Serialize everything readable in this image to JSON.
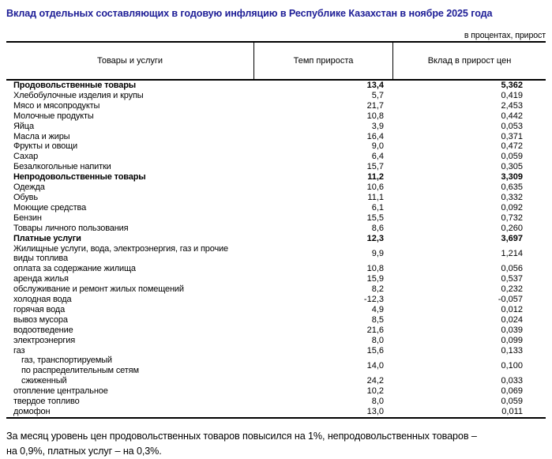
{
  "title": "Вклад отдельных составляющих в годовую инфляцию в Республике Казахстан в ноябре 2025 года",
  "unit_note": "в процентах, прирост",
  "table": {
    "columns": [
      "Товары и услуги",
      "Темп прироста",
      "Вклад в прирост цен"
    ],
    "rows": [
      {
        "label": "Продовольственные товары",
        "rate": "13,4",
        "contribution": "5,362",
        "bold": true,
        "indent": false
      },
      {
        "label": "Хлебобулочные изделия и крупы",
        "rate": "5,7",
        "contribution": "0,419",
        "bold": false,
        "indent": false
      },
      {
        "label": "Мясо и мясопродукты",
        "rate": "21,7",
        "contribution": "2,453",
        "bold": false,
        "indent": false
      },
      {
        "label": "Молочные продукты",
        "rate": "10,8",
        "contribution": "0,442",
        "bold": false,
        "indent": false
      },
      {
        "label": "Яйца",
        "rate": "3,9",
        "contribution": "0,053",
        "bold": false,
        "indent": false
      },
      {
        "label": "Масла и жиры",
        "rate": "16,4",
        "contribution": "0,371",
        "bold": false,
        "indent": false
      },
      {
        "label": "Фрукты и овощи",
        "rate": "9,0",
        "contribution": "0,472",
        "bold": false,
        "indent": false
      },
      {
        "label": "Сахар",
        "rate": "6,4",
        "contribution": "0,059",
        "bold": false,
        "indent": false
      },
      {
        "label": "Безалкогольные напитки",
        "rate": "15,7",
        "contribution": "0,305",
        "bold": false,
        "indent": false
      },
      {
        "label": "Непродовольственные товары",
        "rate": "11,2",
        "contribution": "3,309",
        "bold": true,
        "indent": false
      },
      {
        "label": "Одежда",
        "rate": "10,6",
        "contribution": "0,635",
        "bold": false,
        "indent": false
      },
      {
        "label": "Обувь",
        "rate": "11,1",
        "contribution": "0,332",
        "bold": false,
        "indent": false
      },
      {
        "label": "Моющие средства",
        "rate": "6,1",
        "contribution": "0,092",
        "bold": false,
        "indent": false
      },
      {
        "label": "Бензин",
        "rate": "15,5",
        "contribution": "0,732",
        "bold": false,
        "indent": false
      },
      {
        "label": "Товары личного пользования",
        "rate": "8,6",
        "contribution": "0,260",
        "bold": false,
        "indent": false
      },
      {
        "label": "Платные услуги",
        "rate": "12,3",
        "contribution": "3,697",
        "bold": true,
        "indent": false
      },
      {
        "label": "Жилищные услуги, вода, электроэнергия, газ и прочие\nвиды топлива",
        "rate": "9,9",
        "contribution": "1,214",
        "bold": false,
        "indent": false
      },
      {
        "label": "оплата за содержание жилища",
        "rate": "10,8",
        "contribution": "0,056",
        "bold": false,
        "indent": false
      },
      {
        "label": "аренда жилья",
        "rate": "15,9",
        "contribution": "0,537",
        "bold": false,
        "indent": false
      },
      {
        "label": "обслуживание и ремонт жилых помещений",
        "rate": "8,2",
        "contribution": "0,232",
        "bold": false,
        "indent": false
      },
      {
        "label": "холодная вода",
        "rate": "-12,3",
        "contribution": "-0,057",
        "bold": false,
        "indent": false
      },
      {
        "label": "горячая вода",
        "rate": "4,9",
        "contribution": "0,012",
        "bold": false,
        "indent": false
      },
      {
        "label": "вывоз мусора",
        "rate": "8,5",
        "contribution": "0,024",
        "bold": false,
        "indent": false
      },
      {
        "label": "водоотведение",
        "rate": "21,6",
        "contribution": "0,039",
        "bold": false,
        "indent": false
      },
      {
        "label": "электроэнергия",
        "rate": "8,0",
        "contribution": "0,099",
        "bold": false,
        "indent": false
      },
      {
        "label": "газ",
        "rate": "15,6",
        "contribution": "0,133",
        "bold": false,
        "indent": false
      },
      {
        "label": "газ, транспортируемый\nпо распределительным сетям",
        "rate": "14,0",
        "contribution": "0,100",
        "bold": false,
        "indent": true
      },
      {
        "label": "сжиженный",
        "rate": "24,2",
        "contribution": "0,033",
        "bold": false,
        "indent": true
      },
      {
        "label": "отопление центральное",
        "rate": "10,2",
        "contribution": "0,069",
        "bold": false,
        "indent": false
      },
      {
        "label": "твердое топливо",
        "rate": "8,0",
        "contribution": "0,059",
        "bold": false,
        "indent": false
      },
      {
        "label": "домофон",
        "rate": "13,0",
        "contribution": "0,011",
        "bold": false,
        "indent": false
      }
    ]
  },
  "footer": "За месяц уровень цен продовольственных товаров повысился на 1%, непродовольственных товаров –\nна 0,9%, платных услуг – на 0,3%."
}
